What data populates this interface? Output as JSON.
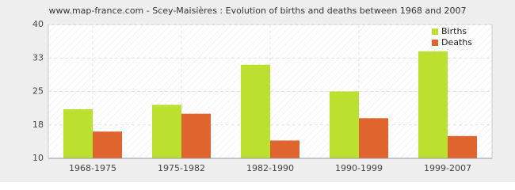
{
  "chart_data": {
    "type": "bar",
    "title": "www.map-france.com - Scey-Maisières : Evolution of births and deaths between 1968 and 2007",
    "categories": [
      "1968-1975",
      "1975-1982",
      "1982-1990",
      "1990-1999",
      "1999-2007"
    ],
    "series": [
      {
        "name": "Births",
        "color": "#bbe030",
        "values": [
          21,
          22,
          31,
          25,
          34
        ]
      },
      {
        "name": "Deaths",
        "color": "#e0642e",
        "values": [
          16,
          20,
          14,
          19,
          15
        ]
      }
    ],
    "ylim": [
      10,
      40
    ],
    "yticks": [
      10,
      {
        "value": 17.5,
        "label": "18"
      },
      25,
      {
        "value": 32.5,
        "label": "33"
      },
      40
    ],
    "grid": true,
    "legend": "top-right"
  }
}
